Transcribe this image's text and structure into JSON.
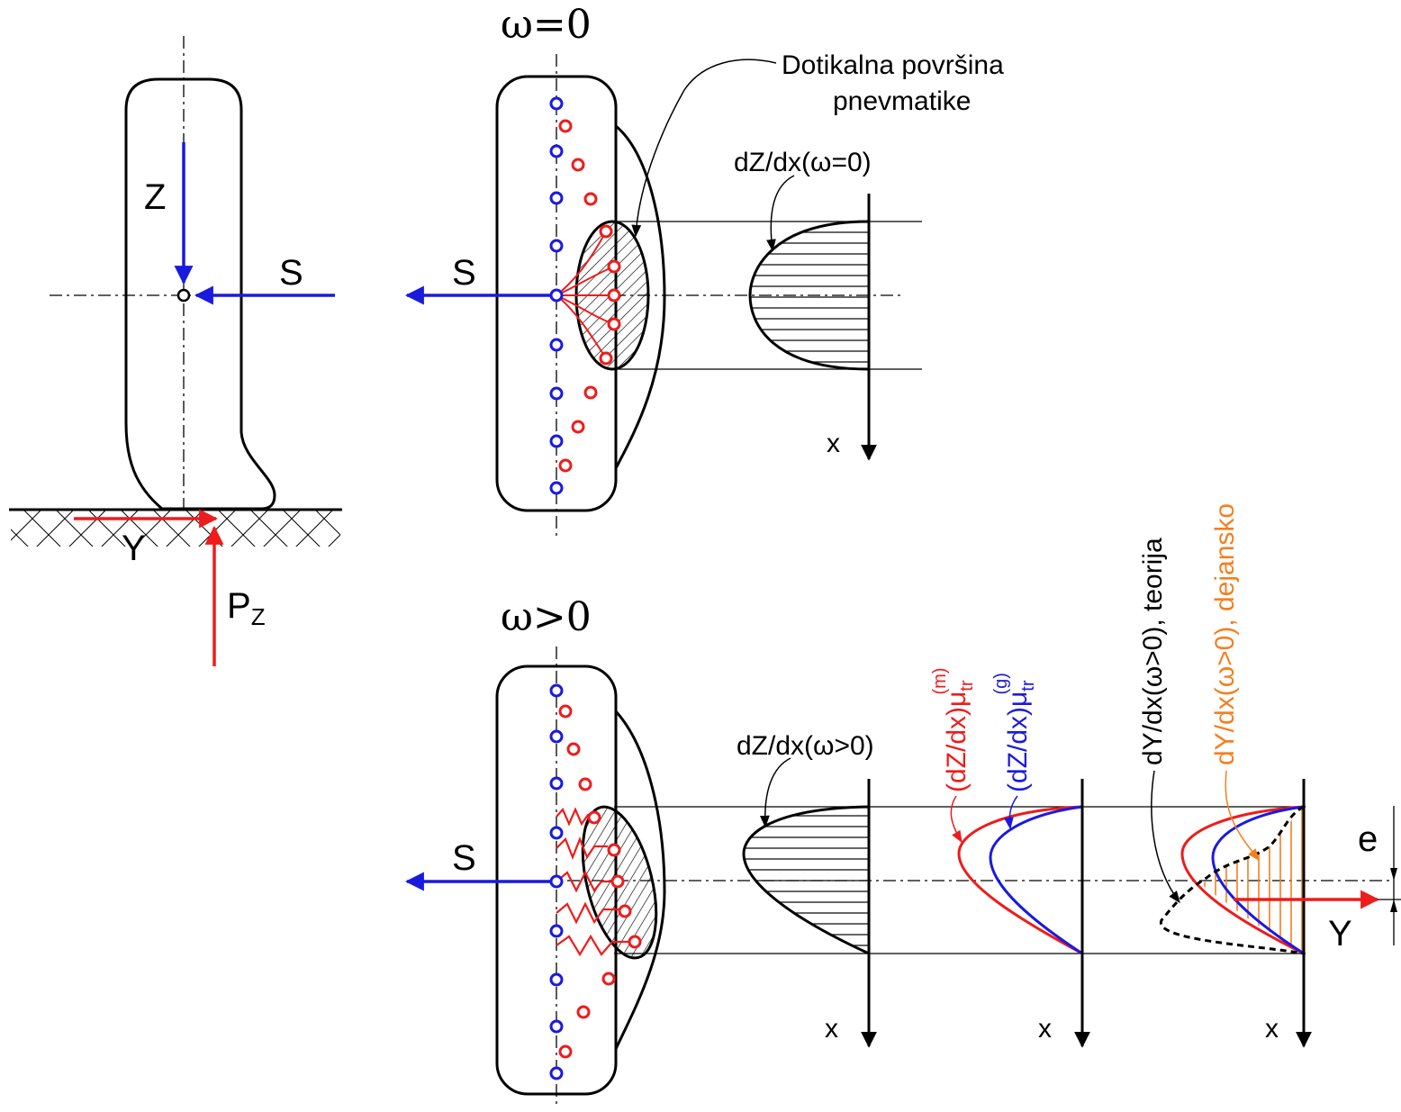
{
  "labels": {
    "omega_zero": "ω=0",
    "omega_pos": "ω>0",
    "contact_line1": "Dotikalna površina",
    "contact_line2": "pnevmatike",
    "dz_zero": "dZ/dx(ω=0)",
    "dz_pos": "dZ/dx(ω>0)",
    "z": "Z",
    "s": "S",
    "y": "Y",
    "pz_base": "P",
    "pz_sub": "Z",
    "x": "x",
    "e": "e",
    "red_curve_main": "(dZ/dx)μ",
    "red_curve_sub": "tr",
    "red_curve_sup": "(m)",
    "blue_curve_main": "(dZ/dx)μ",
    "blue_curve_sub": "tr",
    "blue_curve_sup": "(g)",
    "theory": "dY/dx(ω>0), teorija",
    "actual": "dY/dx(ω>0), dejansko"
  },
  "colors": {
    "red": "#ee1c1c",
    "blue": "#1a1adf",
    "orange": "#f47f1f",
    "black": "#000000"
  }
}
